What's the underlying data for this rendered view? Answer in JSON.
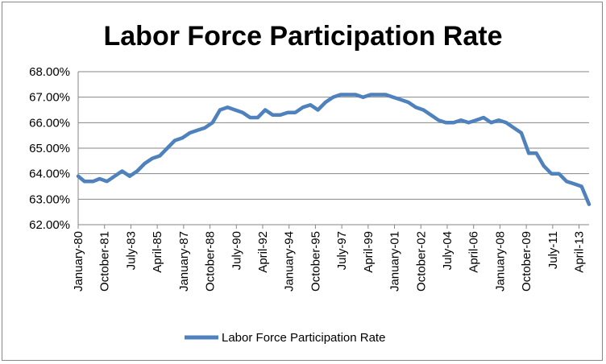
{
  "chart_data": {
    "type": "line",
    "title": "Labor Force Participation Rate",
    "xlabel": "",
    "ylabel": "",
    "ylim": [
      62,
      68
    ],
    "y_ticks": [
      62,
      63,
      64,
      65,
      66,
      67,
      68
    ],
    "y_tick_labels": [
      "62.00%",
      "63.00%",
      "64.00%",
      "65.00%",
      "66.00%",
      "67.00%",
      "68.00%"
    ],
    "x_tick_labels": [
      "January-80",
      "October-81",
      "July-83",
      "April-85",
      "January-87",
      "October-88",
      "July-90",
      "April-92",
      "January-94",
      "October-95",
      "July-97",
      "April-99",
      "January-01",
      "October-02",
      "July-04",
      "April-06",
      "January-08",
      "October-09",
      "July-11",
      "April-13"
    ],
    "x_range": [
      "1980-01",
      "2013-12"
    ],
    "grid": true,
    "legend": "bottom",
    "color": "#4F81BD",
    "series": [
      {
        "name": "Labor Force Participation Rate",
        "x": [
          "1980-01",
          "1980-06",
          "1981-01",
          "1981-06",
          "1981-12",
          "1982-06",
          "1982-12",
          "1983-06",
          "1983-12",
          "1984-06",
          "1984-12",
          "1985-06",
          "1985-12",
          "1986-06",
          "1986-12",
          "1987-06",
          "1987-12",
          "1988-06",
          "1988-12",
          "1989-06",
          "1989-12",
          "1990-06",
          "1990-12",
          "1991-06",
          "1991-12",
          "1992-06",
          "1992-12",
          "1993-06",
          "1993-12",
          "1994-06",
          "1994-12",
          "1995-06",
          "1995-12",
          "1996-06",
          "1996-12",
          "1997-06",
          "1997-12",
          "1998-06",
          "1998-12",
          "1999-06",
          "1999-12",
          "2000-06",
          "2000-12",
          "2001-06",
          "2001-12",
          "2002-06",
          "2002-12",
          "2003-06",
          "2003-12",
          "2004-06",
          "2004-12",
          "2005-06",
          "2005-12",
          "2006-06",
          "2006-12",
          "2007-06",
          "2007-12",
          "2008-06",
          "2008-12",
          "2009-06",
          "2009-12",
          "2010-06",
          "2010-12",
          "2011-06",
          "2011-12",
          "2012-06",
          "2012-12",
          "2013-06",
          "2013-12"
        ],
        "values": [
          63.9,
          63.7,
          63.7,
          63.8,
          63.7,
          63.9,
          64.1,
          63.9,
          64.1,
          64.4,
          64.6,
          64.7,
          65.0,
          65.3,
          65.4,
          65.6,
          65.7,
          65.8,
          66.0,
          66.5,
          66.6,
          66.5,
          66.4,
          66.2,
          66.2,
          66.5,
          66.3,
          66.3,
          66.4,
          66.4,
          66.6,
          66.7,
          66.5,
          66.8,
          67.0,
          67.1,
          67.1,
          67.1,
          67.0,
          67.1,
          67.1,
          67.1,
          67.0,
          66.9,
          66.8,
          66.6,
          66.5,
          66.3,
          66.1,
          66.0,
          66.0,
          66.1,
          66.0,
          66.1,
          66.2,
          66.0,
          66.1,
          66.0,
          65.8,
          65.6,
          64.8,
          64.8,
          64.3,
          64.0,
          64.0,
          63.7,
          63.6,
          63.5,
          62.8
        ]
      }
    ]
  }
}
